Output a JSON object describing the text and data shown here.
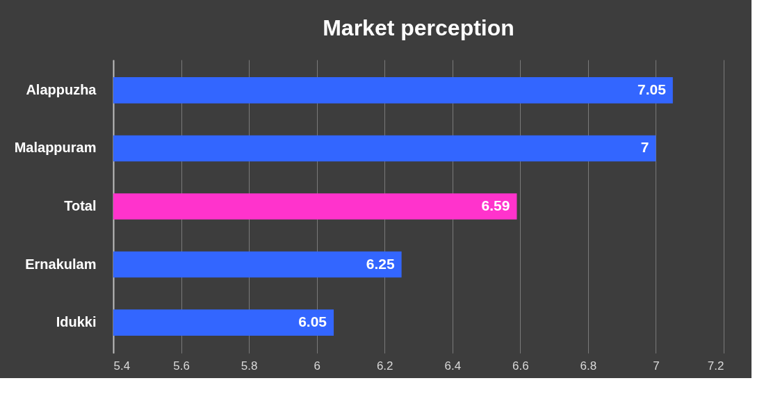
{
  "chart_data": {
    "type": "bar",
    "orientation": "horizontal",
    "title": "Market perception",
    "categories": [
      "Alappuzha",
      "Malappuram",
      "Total",
      "Ernakulam ",
      "Idukki"
    ],
    "values": [
      7.05,
      7,
      6.59,
      6.25,
      6.05
    ],
    "colors": [
      "#3366ff",
      "#3366ff",
      "#ff33cc",
      "#3366ff",
      "#3366ff"
    ],
    "xlim": [
      5.4,
      7.2
    ],
    "xticks": [
      5.4,
      5.6,
      5.8,
      6,
      6.2,
      6.4,
      6.6,
      6.8,
      7,
      7.2
    ],
    "grid": "x",
    "data_labels": true,
    "legend": false
  }
}
